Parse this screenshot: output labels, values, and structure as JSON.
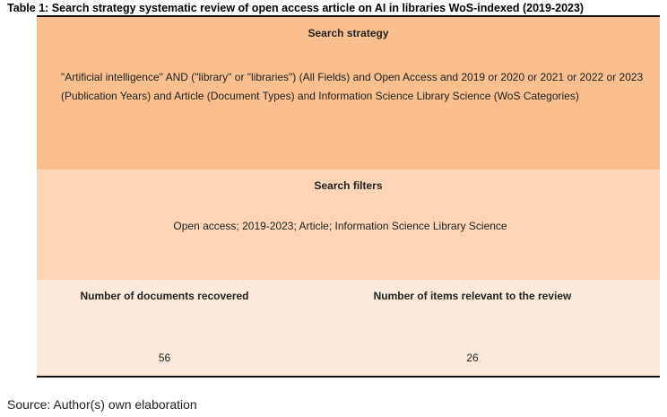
{
  "caption": "Table 1: Search strategy systematic review of open access article on AI in libraries WoS-indexed (2019-2023)",
  "table": {
    "strategy": {
      "header": "Search strategy",
      "text": "\"Artificial intelligence\" AND (\"library\" or \"libraries\") (All Fields) and Open Access and 2019 or 2020 or 2021 or 2022 or 2023 (Publication Years) and Article (Document Types) and Information Science Library Science (WoS Categories)"
    },
    "filters": {
      "header": "Search filters",
      "text": "Open access; 2019-2023; Article; Information Science Library Science"
    },
    "counts": {
      "documents_header": "Number of documents recovered",
      "documents_value": "56",
      "relevant_header": "Number of items relevant to the review",
      "relevant_value": "26"
    }
  },
  "source": "Source: Author(s) own elaboration",
  "colors": {
    "strategy_row": "#f9bf8f",
    "filters_row": "#fbd5b5",
    "counts_row": "#fde9d9"
  }
}
